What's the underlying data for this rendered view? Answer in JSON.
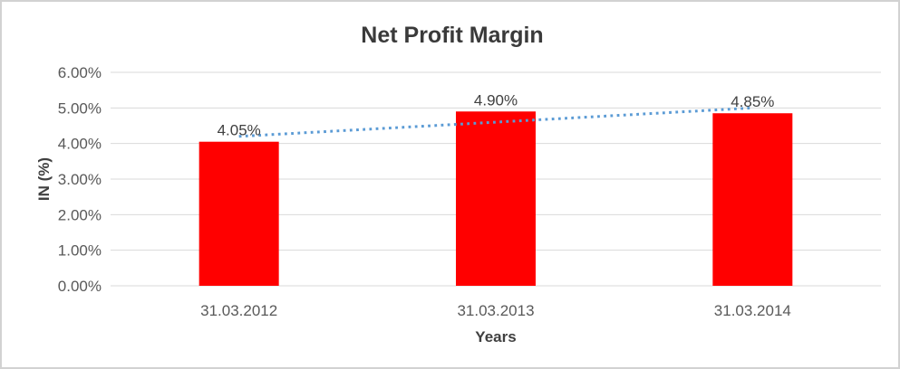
{
  "window": {
    "background": "#ffffff",
    "border_color": "#d2d2d2"
  },
  "chart_data": {
    "type": "bar",
    "title": "Net Profit Margin",
    "xlabel": "Years",
    "ylabel": "IN (%)",
    "categories": [
      "31.03.2012",
      "31.03.2013",
      "31.03.2014"
    ],
    "series": [
      {
        "name": "Net Profit Margin",
        "color": "#ff0000",
        "values": [
          4.05,
          4.9,
          4.85
        ],
        "data_labels": [
          "4.05%",
          "4.90%",
          "4.85%"
        ]
      }
    ],
    "y_axis": {
      "min": 0,
      "max": 6,
      "ticks": [
        {
          "value": 0,
          "label": "0.00%"
        },
        {
          "value": 1,
          "label": "1.00%"
        },
        {
          "value": 2,
          "label": "2.00%"
        },
        {
          "value": 3,
          "label": "3.00%"
        },
        {
          "value": 4,
          "label": "4.00%"
        },
        {
          "value": 5,
          "label": "5.00%"
        },
        {
          "value": 6,
          "label": "6.00%"
        }
      ]
    },
    "grid": {
      "horizontal": true,
      "color": "#d9d9d9"
    },
    "legend": "none",
    "trendline": {
      "type": "linear",
      "style": "dotted",
      "color": "#5b9bd5",
      "start_value": 4.2,
      "end_value": 5.0
    }
  }
}
